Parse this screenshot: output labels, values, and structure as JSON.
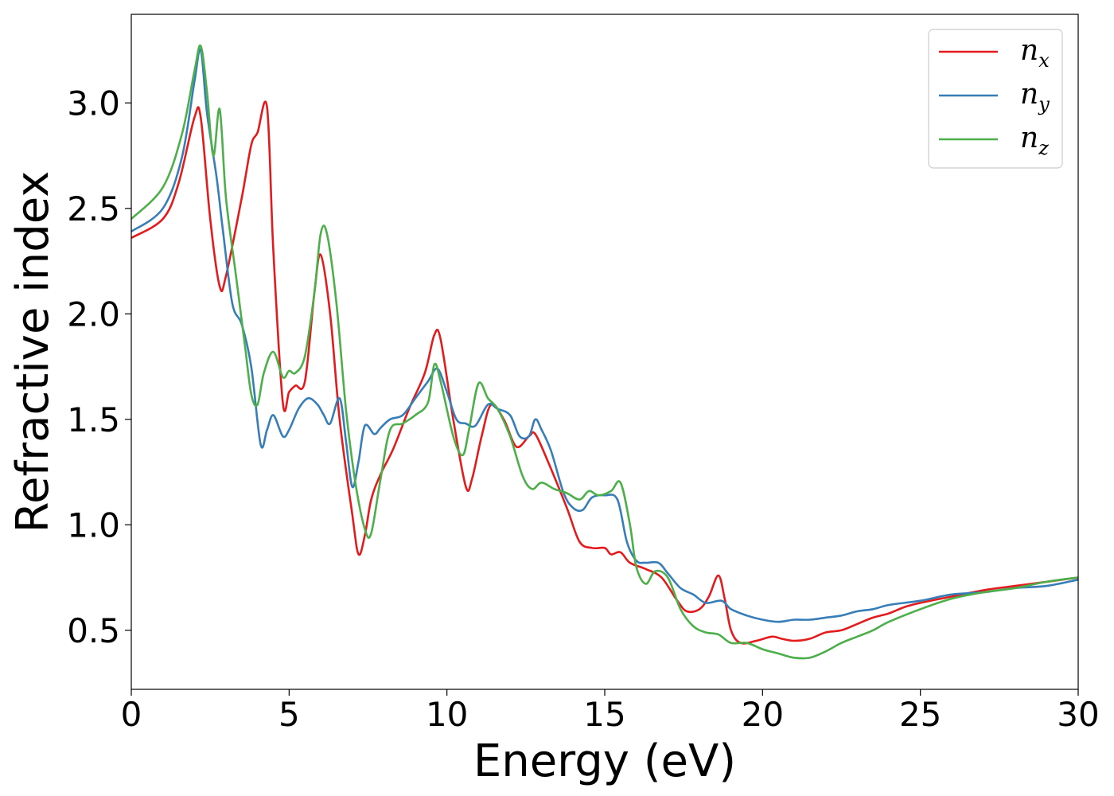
{
  "chart_data": {
    "type": "line",
    "xlabel": "Energy (eV)",
    "ylabel": "Refractive index",
    "xlim": [
      0,
      30
    ],
    "ylim": [
      0.22,
      3.42
    ],
    "xticks": [
      0,
      5,
      10,
      15,
      20,
      25,
      30
    ],
    "xtick_labels": [
      "0",
      "5",
      "10",
      "15",
      "20",
      "25",
      "30"
    ],
    "yticks": [
      0.5,
      1.0,
      1.5,
      2.0,
      2.5,
      3.0
    ],
    "ytick_labels": [
      "0.5",
      "1.0",
      "1.5",
      "2.0",
      "2.5",
      "3.0"
    ],
    "grid": false,
    "legend_position": "top-right",
    "series": [
      {
        "name": "n_x",
        "label_main": "n",
        "label_sub": "x",
        "color": "#e41a1c",
        "x": [
          0,
          1,
          1.5,
          2.0,
          2.2,
          2.5,
          2.8,
          3.0,
          3.5,
          3.8,
          4.0,
          4.3,
          4.5,
          4.8,
          5.0,
          5.2,
          5.5,
          5.8,
          6.0,
          6.3,
          6.6,
          7.0,
          7.2,
          7.4,
          7.6,
          7.9,
          8.3,
          8.8,
          9.3,
          9.6,
          9.8,
          10.2,
          10.6,
          10.8,
          11.1,
          11.4,
          11.8,
          12.2,
          12.6,
          12.8,
          13.2,
          13.8,
          14.2,
          14.6,
          15.0,
          15.2,
          15.5,
          15.8,
          16.3,
          16.8,
          17.3,
          17.6,
          18.0,
          18.3,
          18.6,
          18.8,
          19.0,
          19.3,
          19.8,
          20.3,
          20.6,
          21.0,
          21.5,
          22.0,
          22.5,
          23.0,
          23.5,
          24.0,
          24.5,
          25.0,
          26.0,
          27.0,
          28.0,
          29.0,
          30.0
        ],
        "y": [
          2.36,
          2.45,
          2.62,
          2.93,
          2.93,
          2.45,
          2.13,
          2.18,
          2.55,
          2.8,
          2.86,
          2.98,
          2.3,
          1.58,
          1.63,
          1.66,
          1.68,
          2.1,
          2.28,
          2.0,
          1.5,
          1.05,
          0.86,
          0.95,
          1.12,
          1.24,
          1.36,
          1.55,
          1.72,
          1.9,
          1.88,
          1.5,
          1.18,
          1.22,
          1.42,
          1.57,
          1.5,
          1.37,
          1.42,
          1.43,
          1.3,
          1.08,
          0.92,
          0.89,
          0.89,
          0.86,
          0.87,
          0.82,
          0.79,
          0.75,
          0.64,
          0.59,
          0.6,
          0.66,
          0.76,
          0.65,
          0.5,
          0.44,
          0.45,
          0.47,
          0.46,
          0.45,
          0.46,
          0.49,
          0.5,
          0.53,
          0.56,
          0.58,
          0.61,
          0.63,
          0.66,
          0.69,
          0.71,
          0.73,
          0.75
        ]
      },
      {
        "name": "n_y",
        "label_main": "n",
        "label_sub": "y",
        "color": "#377eb8",
        "x": [
          0,
          1,
          1.6,
          2.0,
          2.2,
          2.4,
          2.7,
          2.9,
          3.2,
          3.5,
          3.8,
          4.1,
          4.3,
          4.5,
          4.8,
          5.0,
          5.3,
          5.6,
          5.9,
          6.1,
          6.3,
          6.6,
          6.8,
          7.0,
          7.2,
          7.4,
          7.7,
          7.9,
          8.2,
          8.6,
          9.0,
          9.4,
          9.7,
          10.0,
          10.3,
          10.6,
          10.9,
          11.3,
          11.6,
          12.0,
          12.3,
          12.6,
          12.8,
          13.0,
          13.3,
          13.7,
          14.0,
          14.3,
          14.6,
          15.0,
          15.4,
          15.7,
          16.0,
          16.3,
          16.7,
          17.0,
          17.4,
          17.8,
          18.2,
          18.7,
          19.0,
          19.5,
          20.0,
          20.5,
          21.0,
          21.5,
          22.0,
          22.5,
          23.0,
          23.5,
          24.0,
          25.0,
          26.0,
          27.0,
          28.0,
          29.0,
          30.0
        ],
        "y": [
          2.39,
          2.5,
          2.74,
          3.1,
          3.25,
          2.95,
          2.65,
          2.4,
          2.05,
          1.95,
          1.75,
          1.38,
          1.45,
          1.52,
          1.42,
          1.45,
          1.55,
          1.6,
          1.57,
          1.52,
          1.48,
          1.6,
          1.4,
          1.18,
          1.3,
          1.47,
          1.43,
          1.46,
          1.5,
          1.52,
          1.6,
          1.68,
          1.74,
          1.63,
          1.5,
          1.48,
          1.47,
          1.57,
          1.55,
          1.52,
          1.42,
          1.42,
          1.5,
          1.45,
          1.35,
          1.15,
          1.08,
          1.07,
          1.13,
          1.14,
          1.12,
          0.92,
          0.83,
          0.82,
          0.82,
          0.77,
          0.7,
          0.67,
          0.63,
          0.64,
          0.6,
          0.57,
          0.55,
          0.54,
          0.55,
          0.55,
          0.56,
          0.57,
          0.59,
          0.6,
          0.62,
          0.64,
          0.67,
          0.68,
          0.7,
          0.71,
          0.74
        ]
      },
      {
        "name": "n_z",
        "label_main": "n",
        "label_sub": "z",
        "color": "#4daf4a",
        "x": [
          0,
          1,
          1.6,
          2.0,
          2.2,
          2.4,
          2.6,
          2.8,
          3.0,
          3.3,
          3.6,
          3.8,
          4.0,
          4.2,
          4.5,
          4.8,
          5.0,
          5.2,
          5.5,
          5.8,
          6.0,
          6.2,
          6.5,
          6.8,
          7.1,
          7.4,
          7.6,
          7.9,
          8.2,
          8.6,
          9.0,
          9.4,
          9.6,
          9.8,
          10.2,
          10.5,
          10.7,
          11.0,
          11.3,
          11.6,
          12.0,
          12.4,
          12.7,
          13.0,
          13.4,
          13.8,
          14.2,
          14.5,
          14.8,
          15.2,
          15.5,
          15.8,
          16.0,
          16.3,
          16.6,
          17.0,
          17.4,
          17.8,
          18.2,
          18.6,
          19.0,
          19.5,
          20.0,
          20.5,
          21.0,
          21.5,
          22.0,
          22.5,
          23.0,
          23.5,
          24.0,
          25.0,
          26.0,
          27.0,
          28.0,
          29.0,
          30.0
        ],
        "y": [
          2.45,
          2.6,
          2.85,
          3.15,
          3.27,
          3.05,
          2.75,
          2.97,
          2.55,
          2.2,
          1.85,
          1.62,
          1.57,
          1.72,
          1.82,
          1.7,
          1.73,
          1.72,
          1.8,
          2.1,
          2.38,
          2.38,
          2.05,
          1.55,
          1.2,
          0.98,
          0.96,
          1.22,
          1.45,
          1.48,
          1.52,
          1.58,
          1.76,
          1.68,
          1.42,
          1.33,
          1.45,
          1.67,
          1.6,
          1.55,
          1.42,
          1.23,
          1.17,
          1.2,
          1.17,
          1.15,
          1.12,
          1.16,
          1.14,
          1.16,
          1.2,
          1.0,
          0.8,
          0.72,
          0.78,
          0.75,
          0.6,
          0.52,
          0.49,
          0.48,
          0.44,
          0.44,
          0.41,
          0.39,
          0.37,
          0.37,
          0.4,
          0.44,
          0.47,
          0.5,
          0.54,
          0.6,
          0.65,
          0.68,
          0.7,
          0.73,
          0.75
        ]
      }
    ]
  }
}
